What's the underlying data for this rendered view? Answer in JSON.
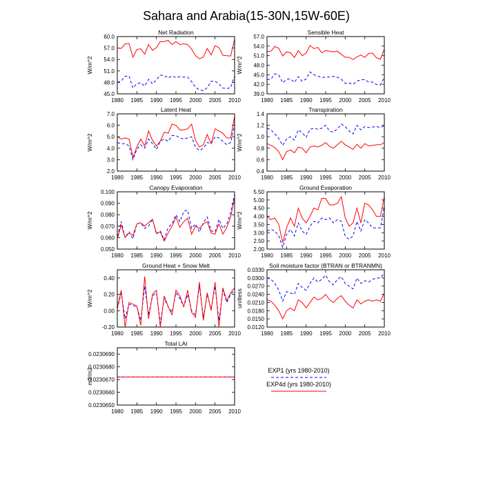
{
  "figure_title": "Sahara and Arabia(15-30N,15W-60E)",
  "legend": {
    "exp1_label": "EXP1 (yrs 1980-2010)",
    "exp4d_label": "EXP4d (yrs 1980-2010)",
    "exp1_color": "#0000ff",
    "exp4d_color": "#ff0000"
  },
  "chart_data": [
    {
      "type": "line",
      "title": "Net Radiation",
      "ylabel": "W/m^2",
      "xlim": [
        1980,
        2010
      ],
      "ylim": [
        45.0,
        60.0
      ],
      "yticks": [
        "45.0",
        "48.0",
        "51.0",
        "54.0",
        "57.0",
        "60.0"
      ],
      "xticks": [
        "1980",
        "1985",
        "1990",
        "1995",
        "2000",
        "2005",
        "2010"
      ],
      "series": [
        {
          "name": "EXP1",
          "values": [
            48.0,
            48.4,
            49.6,
            49.7,
            46.5,
            47.7,
            47.9,
            47.0,
            48.8,
            47.6,
            48.7,
            49.9,
            49.8,
            49.1,
            49.7,
            49.3,
            49.5,
            49.4,
            49.4,
            48.2,
            46.7,
            46.1,
            45.8,
            46.6,
            48.3,
            48.3,
            47.6,
            46.5,
            46.4,
            46.6,
            49.7
          ]
        },
        {
          "name": "EXP4d",
          "values": [
            57.0,
            56.9,
            58.1,
            58.2,
            54.6,
            56.6,
            56.8,
            55.4,
            57.9,
            56.4,
            57.1,
            58.7,
            58.7,
            59.0,
            57.9,
            58.7,
            57.9,
            58.1,
            57.9,
            56.7,
            55.0,
            54.2,
            54.6,
            56.9,
            55.2,
            57.6,
            57.1,
            55.1,
            55.0,
            54.9,
            59.4
          ]
        }
      ]
    },
    {
      "type": "line",
      "title": "Sensible Heat",
      "ylabel": "W/m^2",
      "xlim": [
        1980,
        2010
      ],
      "ylim": [
        39.0,
        57.0
      ],
      "yticks": [
        "39.0",
        "42.0",
        "45.0",
        "48.0",
        "51.0",
        "54.0",
        "57.0"
      ],
      "xticks": [
        "1980",
        "1985",
        "1990",
        "1995",
        "2000",
        "2005",
        "2010"
      ],
      "series": [
        {
          "name": "EXP1",
          "values": [
            43.5,
            43.6,
            45.3,
            44.9,
            42.5,
            43.6,
            43.7,
            42.6,
            44.4,
            42.9,
            43.7,
            45.9,
            45.0,
            44.6,
            44.1,
            44.3,
            44.3,
            44.5,
            44.2,
            43.6,
            42.3,
            42.4,
            42.0,
            43.0,
            43.4,
            43.5,
            42.7,
            42.7,
            41.9,
            41.8,
            44.2
          ]
        },
        {
          "name": "EXP4d",
          "values": [
            52.3,
            52.4,
            53.9,
            53.3,
            50.9,
            52.2,
            51.9,
            50.4,
            52.6,
            51.0,
            51.8,
            54.2,
            53.2,
            53.6,
            51.9,
            52.6,
            52.4,
            52.2,
            52.4,
            51.4,
            50.5,
            50.5,
            49.8,
            50.6,
            51.2,
            50.4,
            51.7,
            51.8,
            50.3,
            49.9,
            53.1
          ]
        }
      ]
    },
    {
      "type": "line",
      "title": "Latent Heat",
      "ylabel": "W/m^2",
      "xlim": [
        1980,
        2010
      ],
      "ylim": [
        2.0,
        7.0
      ],
      "yticks": [
        "2.0",
        "3.0",
        "4.0",
        "5.0",
        "6.0",
        "7.0"
      ],
      "xticks": [
        "1980",
        "1985",
        "1990",
        "1995",
        "2000",
        "2005",
        "2010"
      ],
      "series": [
        {
          "name": "EXP1",
          "values": [
            4.5,
            4.4,
            4.4,
            4.2,
            3.0,
            3.9,
            4.3,
            4.0,
            4.8,
            4.4,
            3.9,
            4.6,
            4.8,
            4.6,
            5.1,
            5.1,
            4.9,
            4.8,
            4.9,
            5.0,
            4.1,
            3.8,
            4.0,
            4.5,
            4.4,
            5.0,
            4.9,
            4.6,
            4.3,
            4.5,
            6.1
          ]
        },
        {
          "name": "EXP4d",
          "values": [
            5.0,
            4.8,
            4.9,
            4.8,
            3.2,
            4.1,
            4.8,
            4.2,
            5.5,
            4.7,
            4.2,
            4.6,
            5.4,
            5.3,
            6.1,
            6.0,
            5.6,
            5.6,
            5.7,
            6.1,
            4.7,
            4.1,
            4.3,
            5.2,
            4.4,
            5.7,
            5.5,
            5.3,
            4.9,
            4.9,
            6.8
          ]
        }
      ]
    },
    {
      "type": "line",
      "title": "Transpiration",
      "ylabel": "W/m^2",
      "xlim": [
        1980,
        2010
      ],
      "ylim": [
        0.4,
        1.4
      ],
      "yticks": [
        "0.4",
        "0.6",
        "0.8",
        "1.0",
        "1.2",
        "1.4"
      ],
      "xticks": [
        "1980",
        "1985",
        "1990",
        "1995",
        "2000",
        "2005",
        "2010"
      ],
      "series": [
        {
          "name": "EXP1",
          "values": [
            1.15,
            1.12,
            1.05,
            0.97,
            0.85,
            0.96,
            1.0,
            0.94,
            1.12,
            1.07,
            0.99,
            1.13,
            1.15,
            1.13,
            1.15,
            1.2,
            1.1,
            1.08,
            1.14,
            1.22,
            1.18,
            1.1,
            1.05,
            1.2,
            1.12,
            1.18,
            1.16,
            1.17,
            1.18,
            1.16,
            1.19
          ]
        },
        {
          "name": "EXP4d",
          "values": [
            0.88,
            0.85,
            0.81,
            0.74,
            0.6,
            0.74,
            0.77,
            0.72,
            0.82,
            0.8,
            0.72,
            0.82,
            0.84,
            0.82,
            0.85,
            0.9,
            0.83,
            0.8,
            0.86,
            0.92,
            0.86,
            0.82,
            0.78,
            0.87,
            0.8,
            0.88,
            0.84,
            0.85,
            0.86,
            0.86,
            0.9
          ]
        }
      ]
    },
    {
      "type": "line",
      "title": "Canopy Evaporation",
      "ylabel": "W/m^2",
      "xlim": [
        1980,
        2010
      ],
      "ylim": [
        0.05,
        0.1
      ],
      "yticks": [
        "0.050",
        "0.060",
        "0.070",
        "0.080",
        "0.090",
        "0.100"
      ],
      "xticks": [
        "1980",
        "1985",
        "1990",
        "1995",
        "2000",
        "2005",
        "2010"
      ],
      "series": [
        {
          "name": "EXP1",
          "values": [
            0.061,
            0.074,
            0.06,
            0.065,
            0.059,
            0.072,
            0.073,
            0.068,
            0.07,
            0.076,
            0.063,
            0.066,
            0.058,
            0.069,
            0.072,
            0.08,
            0.074,
            0.083,
            0.084,
            0.068,
            0.072,
            0.065,
            0.073,
            0.078,
            0.066,
            0.065,
            0.076,
            0.068,
            0.072,
            0.082,
            0.098
          ]
        },
        {
          "name": "EXP4d",
          "values": [
            0.059,
            0.071,
            0.06,
            0.064,
            0.062,
            0.072,
            0.073,
            0.07,
            0.073,
            0.076,
            0.064,
            0.065,
            0.057,
            0.064,
            0.07,
            0.078,
            0.069,
            0.074,
            0.077,
            0.063,
            0.07,
            0.068,
            0.072,
            0.074,
            0.064,
            0.063,
            0.072,
            0.063,
            0.069,
            0.078,
            0.095
          ]
        }
      ]
    },
    {
      "type": "line",
      "title": "Ground Evaporation",
      "ylabel": "W/m^2",
      "xlim": [
        1980,
        2010
      ],
      "ylim": [
        2.0,
        5.5
      ],
      "yticks": [
        "2.00",
        "2.50",
        "3.00",
        "3.50",
        "4.00",
        "4.50",
        "5.00",
        "5.50"
      ],
      "xticks": [
        "1980",
        "1985",
        "1990",
        "1995",
        "2000",
        "2005",
        "2010"
      ],
      "series": [
        {
          "name": "EXP1",
          "values": [
            3.1,
            3.2,
            3.1,
            2.8,
            2.1,
            2.9,
            3.2,
            2.8,
            3.6,
            3.1,
            2.9,
            3.4,
            3.7,
            3.6,
            3.9,
            3.8,
            3.9,
            3.6,
            3.8,
            3.7,
            2.8,
            2.6,
            2.8,
            3.7,
            3.1,
            3.8,
            3.6,
            3.3,
            3.3,
            3.3,
            4.6
          ]
        },
        {
          "name": "EXP4d",
          "values": [
            4.0,
            3.8,
            3.9,
            3.5,
            2.4,
            3.3,
            3.9,
            3.4,
            4.5,
            3.9,
            3.6,
            4.0,
            4.5,
            4.4,
            5.1,
            5.1,
            4.7,
            4.7,
            4.8,
            5.2,
            3.9,
            3.4,
            3.6,
            4.5,
            3.6,
            4.8,
            4.7,
            4.4,
            4.0,
            4.0,
            5.2
          ]
        }
      ]
    },
    {
      "type": "line",
      "title": "Ground Heat + Snow Melt",
      "ylabel": "W/m^2",
      "xlim": [
        1980,
        2010
      ],
      "ylim": [
        -0.2,
        0.5
      ],
      "yticks": [
        "-0.20",
        "0.00",
        "0.20",
        "0.40"
      ],
      "xticks": [
        "1980",
        "1985",
        "1990",
        "1995",
        "2000",
        "2005",
        "2010"
      ],
      "series": [
        {
          "name": "EXP1",
          "values": [
            0.02,
            0.22,
            -0.1,
            0.08,
            0.06,
            0.05,
            -0.12,
            0.3,
            -0.05,
            0.18,
            0.22,
            -0.15,
            0.15,
            0.05,
            -0.02,
            0.22,
            0.15,
            0.05,
            0.2,
            0.0,
            -0.05,
            0.3,
            -0.08,
            0.2,
            0.02,
            0.3,
            -0.12,
            0.25,
            0.1,
            0.2,
            0.25
          ]
        },
        {
          "name": "EXP4d",
          "values": [
            0.03,
            0.25,
            -0.2,
            0.1,
            0.08,
            0.06,
            -0.18,
            0.42,
            -0.1,
            0.2,
            0.25,
            -0.2,
            0.18,
            0.05,
            -0.05,
            0.25,
            0.18,
            0.05,
            0.25,
            -0.02,
            -0.08,
            0.35,
            -0.12,
            0.22,
            0.0,
            0.35,
            -0.2,
            0.28,
            0.12,
            0.22,
            0.28
          ]
        }
      ]
    },
    {
      "type": "line",
      "title": "Soil moisture factor (BTRAN or BTRANMN)",
      "ylabel": "unitless",
      "xlim": [
        1980,
        2010
      ],
      "ylim": [
        0.012,
        0.033
      ],
      "yticks": [
        "0.0120",
        "0.0150",
        "0.0180",
        "0.0210",
        "0.0240",
        "0.0270",
        "0.0300",
        "0.0330"
      ],
      "xticks": [
        "1980",
        "1985",
        "1990",
        "1995",
        "2000",
        "2005",
        "2010"
      ],
      "series": [
        {
          "name": "EXP1",
          "values": [
            0.03,
            0.0295,
            0.028,
            0.0255,
            0.0215,
            0.025,
            0.0245,
            0.024,
            0.028,
            0.0265,
            0.0255,
            0.028,
            0.03,
            0.0285,
            0.0295,
            0.031,
            0.0285,
            0.0275,
            0.0295,
            0.0305,
            0.028,
            0.027,
            0.026,
            0.03,
            0.028,
            0.029,
            0.0285,
            0.0295,
            0.03,
            0.03,
            0.032
          ]
        },
        {
          "name": "EXP4d",
          "values": [
            0.022,
            0.0215,
            0.02,
            0.018,
            0.015,
            0.018,
            0.019,
            0.018,
            0.022,
            0.021,
            0.019,
            0.021,
            0.023,
            0.022,
            0.0225,
            0.024,
            0.022,
            0.021,
            0.0225,
            0.0235,
            0.0215,
            0.02,
            0.019,
            0.022,
            0.0205,
            0.0215,
            0.022,
            0.0215,
            0.022,
            0.0215,
            0.0245
          ]
        }
      ]
    },
    {
      "type": "line",
      "title": "Total LAI",
      "ylabel": "m2/m2",
      "xlim": [
        1980,
        2010
      ],
      "ylim": [
        0.023065,
        0.0230695
      ],
      "yticks": [
        "0.0230650",
        "0.0230660",
        "0.0230670",
        "0.0230680",
        "0.0230690"
      ],
      "xticks": [
        "1980",
        "1985",
        "1990",
        "1995",
        "2000",
        "2005",
        "2010"
      ],
      "series": [
        {
          "name": "EXP1",
          "values": [
            0.0230672,
            0.0230672,
            0.0230672,
            0.0230672,
            0.0230672,
            0.0230672,
            0.0230672,
            0.0230672,
            0.0230672,
            0.0230672,
            0.0230672,
            0.0230672,
            0.0230672,
            0.0230672,
            0.0230672,
            0.0230672,
            0.0230672,
            0.0230672,
            0.0230672,
            0.0230672,
            0.0230672,
            0.0230672,
            0.0230672,
            0.0230672,
            0.0230672,
            0.0230672,
            0.0230672,
            0.0230672,
            0.0230672,
            0.0230672,
            0.0230672
          ]
        },
        {
          "name": "EXP4d",
          "values": [
            0.0230672,
            0.0230672,
            0.0230672,
            0.0230672,
            0.0230672,
            0.0230672,
            0.0230672,
            0.0230672,
            0.0230672,
            0.0230672,
            0.0230672,
            0.0230672,
            0.0230672,
            0.0230672,
            0.0230672,
            0.0230672,
            0.0230672,
            0.0230672,
            0.0230672,
            0.0230672,
            0.0230672,
            0.0230672,
            0.0230672,
            0.0230672,
            0.0230672,
            0.0230672,
            0.0230672,
            0.0230672,
            0.0230672,
            0.0230672,
            0.0230672
          ]
        }
      ]
    }
  ]
}
